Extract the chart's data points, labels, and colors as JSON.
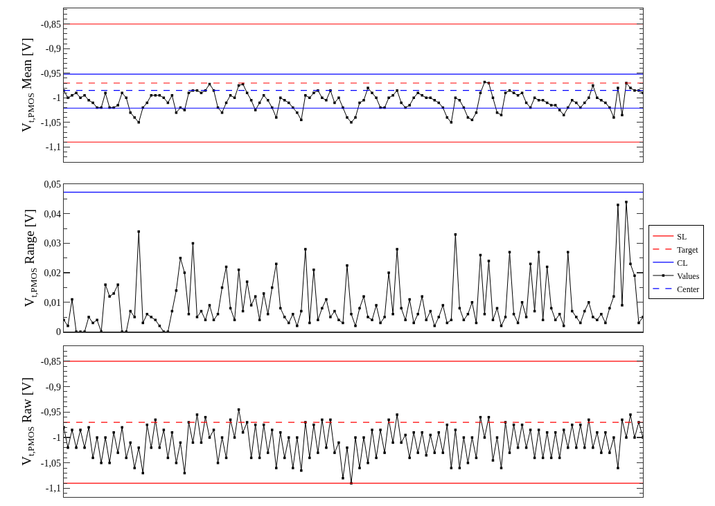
{
  "chart_data": [
    {
      "type": "line",
      "ylabel": "V$_{t,PMOS}$ Mean [V]",
      "tick_labels": "y",
      "marker": "square",
      "line_style": "solid",
      "categories": [
        null,
        null,
        null,
        null,
        null,
        null,
        null,
        null,
        null,
        null,
        null,
        null,
        null,
        null,
        null,
        null,
        null,
        null,
        null,
        null,
        null,
        null,
        null,
        null,
        null,
        null,
        null,
        null,
        null,
        null,
        null,
        null,
        null,
        null,
        null,
        null,
        null,
        null,
        null,
        null,
        null,
        null,
        null,
        null,
        null,
        null,
        null,
        null,
        null,
        null,
        null,
        null,
        null,
        null,
        null,
        null,
        null,
        null,
        null,
        null,
        null,
        null,
        null,
        null,
        null,
        null,
        null,
        null,
        null,
        null,
        null,
        null,
        null,
        null,
        null,
        null,
        null,
        null,
        null,
        null,
        null,
        null,
        null,
        null,
        null,
        null,
        null,
        null,
        null,
        null,
        null,
        null,
        null,
        null,
        null,
        null,
        null,
        null,
        null,
        null,
        null,
        null,
        null,
        null,
        null,
        null,
        null,
        null,
        null,
        null,
        null,
        null,
        null,
        null,
        null,
        null,
        null,
        null,
        null,
        null,
        null,
        null,
        null,
        null,
        null,
        null,
        null,
        null,
        null,
        null,
        null,
        null,
        null,
        null,
        null,
        null,
        null,
        null,
        null,
        null
      ],
      "series": [
        {
          "name": "Values",
          "color": "#000000",
          "values": [
            -0.985,
            -1.0,
            -0.995,
            -0.99,
            -1.0,
            -0.995,
            -1.005,
            -1.01,
            -1.02,
            -1.02,
            -0.99,
            -1.02,
            -1.02,
            -1.015,
            -0.99,
            -1.0,
            -1.03,
            -1.04,
            -1.05,
            -1.02,
            -1.01,
            -0.995,
            -0.995,
            -0.995,
            -1.0,
            -1.01,
            -0.995,
            -1.03,
            -1.02,
            -1.025,
            -0.99,
            -0.985,
            -0.985,
            -0.99,
            -0.985,
            -0.972,
            -0.985,
            -1.02,
            -1.03,
            -1.01,
            -0.995,
            -1.0,
            -0.975,
            -0.972,
            -0.99,
            -1.005,
            -1.025,
            -1.01,
            -0.995,
            -1.005,
            -1.02,
            -1.04,
            -1.0,
            -1.005,
            -1.01,
            -1.02,
            -1.03,
            -1.045,
            -0.995,
            -1.0,
            -0.99,
            -0.985,
            -1.0,
            -1.005,
            -0.985,
            -1.01,
            -1.0,
            -1.02,
            -1.04,
            -1.05,
            -1.04,
            -1.01,
            -1.005,
            -0.98,
            -0.99,
            -1.0,
            -1.02,
            -1.02,
            -1.0,
            -0.995,
            -0.985,
            -1.01,
            -1.02,
            -1.015,
            -1.0,
            -0.99,
            -0.995,
            -1.0,
            -1.0,
            -1.005,
            -1.01,
            -1.02,
            -1.04,
            -1.05,
            -1.0,
            -1.005,
            -1.02,
            -1.04,
            -1.045,
            -1.03,
            -0.99,
            -0.968,
            -0.97,
            -1.0,
            -1.03,
            -1.035,
            -0.99,
            -0.985,
            -0.99,
            -0.995,
            -0.99,
            -1.01,
            -1.02,
            -1.0,
            -1.005,
            -1.005,
            -1.01,
            -1.015,
            -1.015,
            -1.025,
            -1.035,
            -1.02,
            -1.005,
            -1.01,
            -1.02,
            -1.01,
            -1.0,
            -0.975,
            -1.0,
            -1.005,
            -1.01,
            -1.02,
            -1.04,
            -0.98,
            -1.035,
            -0.97,
            -0.98,
            -0.985,
            -0.985,
            -0.99
          ]
        }
      ],
      "ylim": [
        -1.13,
        -0.818
      ],
      "yticks": [
        {
          "value": -0.85,
          "label": "-0,85"
        },
        {
          "value": -0.9,
          "label": "-0,9"
        },
        {
          "value": -0.95,
          "label": "-0,95"
        },
        {
          "value": -1,
          "label": "-1"
        },
        {
          "value": -1.05,
          "label": "-1,05"
        },
        {
          "value": -1.1,
          "label": "-1,1"
        },
        {
          "value": -0.82,
          "label": null
        },
        {
          "value": -0.83,
          "label": null
        },
        {
          "value": -0.84,
          "label": null
        },
        {
          "value": -0.86,
          "label": null
        },
        {
          "value": -0.87,
          "label": null
        },
        {
          "value": -0.88,
          "label": null
        },
        {
          "value": -0.89,
          "label": null
        },
        {
          "value": -0.91,
          "label": null
        },
        {
          "value": -0.92,
          "label": null
        },
        {
          "value": -0.93,
          "label": null
        },
        {
          "value": -0.94,
          "label": null
        },
        {
          "value": -0.96,
          "label": null
        },
        {
          "value": -0.97,
          "label": null
        },
        {
          "value": -0.98,
          "label": null
        },
        {
          "value": -0.99,
          "label": null
        },
        {
          "value": -1.01,
          "label": null
        },
        {
          "value": -1.02,
          "label": null
        },
        {
          "value": -1.03,
          "label": null
        },
        {
          "value": -1.04,
          "label": null
        },
        {
          "value": -1.06,
          "label": null
        },
        {
          "value": -1.07,
          "label": null
        },
        {
          "value": -1.08,
          "label": null
        },
        {
          "value": -1.09,
          "label": null
        },
        {
          "value": -1.11,
          "label": null
        },
        {
          "value": -1.12,
          "label": null
        }
      ],
      "ref_lines": [
        {
          "axis": "y",
          "value": -0.85,
          "label": "SL",
          "color": "#ff0000",
          "line_style": "solid"
        },
        {
          "axis": "y",
          "value": -0.97,
          "label": "Target",
          "color": "#ff0000",
          "line_style": "dashed"
        },
        {
          "axis": "y",
          "value": -0.952,
          "label": "CL",
          "color": "#0000ff",
          "line_style": "solid"
        },
        {
          "axis": "y",
          "value": -1.021,
          "color": "#0000ff",
          "line_style": "solid"
        },
        {
          "axis": "y",
          "value": -1.09,
          "color": "#ff0000",
          "line_style": "solid"
        },
        {
          "axis": "y",
          "value": -0.985,
          "label": "Center",
          "color": "#0000ff",
          "line_style": "dashed"
        }
      ],
      "legend": "bottom right"
    },
    {
      "type": "line",
      "ylabel": "V$_{t,PMOS}$ Range [V]",
      "tick_labels": "y",
      "marker": "square",
      "line_style": "solid",
      "categories": [
        null,
        null,
        null,
        null,
        null,
        null,
        null,
        null,
        null,
        null,
        null,
        null,
        null,
        null,
        null,
        null,
        null,
        null,
        null,
        null,
        null,
        null,
        null,
        null,
        null,
        null,
        null,
        null,
        null,
        null,
        null,
        null,
        null,
        null,
        null,
        null,
        null,
        null,
        null,
        null,
        null,
        null,
        null,
        null,
        null,
        null,
        null,
        null,
        null,
        null,
        null,
        null,
        null,
        null,
        null,
        null,
        null,
        null,
        null,
        null,
        null,
        null,
        null,
        null,
        null,
        null,
        null,
        null,
        null,
        null,
        null,
        null,
        null,
        null,
        null,
        null,
        null,
        null,
        null,
        null,
        null,
        null,
        null,
        null,
        null,
        null,
        null,
        null,
        null,
        null,
        null,
        null,
        null,
        null,
        null,
        null,
        null,
        null,
        null,
        null,
        null,
        null,
        null,
        null,
        null,
        null,
        null,
        null,
        null,
        null,
        null,
        null,
        null,
        null,
        null,
        null,
        null,
        null,
        null,
        null,
        null,
        null,
        null,
        null,
        null,
        null,
        null,
        null,
        null,
        null,
        null,
        null,
        null,
        null,
        null,
        null,
        null,
        null,
        null,
        null
      ],
      "series": [
        {
          "name": "Values",
          "color": "#000000",
          "values": [
            0.004,
            0.002,
            0.011,
            0,
            0,
            0,
            0.005,
            0.003,
            0.004,
            0,
            0.016,
            0.012,
            0.013,
            0.016,
            0,
            0,
            0.007,
            0.005,
            0.034,
            0.003,
            0.006,
            0.005,
            0.004,
            0.002,
            0,
            0,
            0.007,
            0.014,
            0.025,
            0.02,
            0.006,
            0.03,
            0.005,
            0.007,
            0.004,
            0.009,
            0.004,
            0.006,
            0.015,
            0.022,
            0.008,
            0.004,
            0.021,
            0.007,
            0.017,
            0.009,
            0.012,
            0.004,
            0.013,
            0.006,
            0.015,
            0.023,
            0.008,
            0.005,
            0.003,
            0.006,
            0.002,
            0.007,
            0.028,
            0.003,
            0.021,
            0.004,
            0.008,
            0.011,
            0.005,
            0.007,
            0.004,
            0.003,
            0.0225,
            0.006,
            0.002,
            0.008,
            0.012,
            0.005,
            0.004,
            0.009,
            0.003,
            0.005,
            0.02,
            0.006,
            0.028,
            0.008,
            0.004,
            0.011,
            0.003,
            0.006,
            0.012,
            0.004,
            0.007,
            0.002,
            0.005,
            0.009,
            0.003,
            0.004,
            0.033,
            0.008,
            0.004,
            0.006,
            0.01,
            0.003,
            0.026,
            0.006,
            0.024,
            0.004,
            0.008,
            0.002,
            0.005,
            0.027,
            0.006,
            0.003,
            0.01,
            0.005,
            0.023,
            0.007,
            0.027,
            0.004,
            0.022,
            0.008,
            0.004,
            0.006,
            0.002,
            0.027,
            0.007,
            0.005,
            0.003,
            0.007,
            0.01,
            0.005,
            0.004,
            0.006,
            0.003,
            0.008,
            0.012,
            0.043,
            0.009,
            0.044,
            0.023,
            0.019,
            0.003,
            0.005
          ]
        }
      ],
      "ylim": [
        0,
        0.05
      ],
      "yticks": [
        {
          "value": 0,
          "label": "0"
        },
        {
          "value": 0.01,
          "label": "0,01"
        },
        {
          "value": 0.02,
          "label": "0,02"
        },
        {
          "value": 0.03,
          "label": "0,03"
        },
        {
          "value": 0.04,
          "label": "0,04"
        },
        {
          "value": 0.05,
          "label": "0,05"
        },
        {
          "value": 0.005,
          "label": null
        },
        {
          "value": 0.015,
          "label": null
        },
        {
          "value": 0.025,
          "label": null
        },
        {
          "value": 0.035,
          "label": null
        },
        {
          "value": 0.045,
          "label": null
        }
      ],
      "ref_lines": [
        {
          "axis": "y",
          "value": 0.0473,
          "color": "#0000ff",
          "line_style": "solid"
        }
      ]
    },
    {
      "type": "line",
      "ylabel": "V$_{t,PMOS}$ Raw [V]",
      "tick_labels": "y",
      "marker": "square",
      "line_style": "solid",
      "categories": [
        null,
        null,
        null,
        null,
        null,
        null,
        null,
        null,
        null,
        null,
        null,
        null,
        null,
        null,
        null,
        null,
        null,
        null,
        null,
        null,
        null,
        null,
        null,
        null,
        null,
        null,
        null,
        null,
        null,
        null,
        null,
        null,
        null,
        null,
        null,
        null,
        null,
        null,
        null,
        null,
        null,
        null,
        null,
        null,
        null,
        null,
        null,
        null,
        null,
        null,
        null,
        null,
        null,
        null,
        null,
        null,
        null,
        null,
        null,
        null,
        null,
        null,
        null,
        null,
        null,
        null,
        null,
        null,
        null,
        null,
        null,
        null,
        null,
        null,
        null,
        null,
        null,
        null,
        null,
        null,
        null,
        null,
        null,
        null,
        null,
        null,
        null,
        null,
        null,
        null,
        null,
        null,
        null,
        null,
        null,
        null,
        null,
        null,
        null,
        null,
        null,
        null,
        null,
        null,
        null,
        null,
        null,
        null,
        null,
        null,
        null,
        null,
        null,
        null,
        null,
        null,
        null,
        null,
        null,
        null,
        null,
        null,
        null,
        null,
        null,
        null,
        null,
        null,
        null,
        null,
        null,
        null,
        null,
        null,
        null,
        null,
        null,
        null,
        null,
        null
      ],
      "series": [
        {
          "name": "Values",
          "color": "#000000",
          "values": [
            -0.98,
            -1.02,
            -0.985,
            -1.02,
            -0.985,
            -1.02,
            -0.98,
            -1.04,
            -1.0,
            -1.05,
            -1.0,
            -1.05,
            -0.99,
            -1.03,
            -0.98,
            -1.04,
            -1.01,
            -1.06,
            -1.02,
            -1.07,
            -0.975,
            -1.02,
            -0.965,
            -1.02,
            -0.985,
            -1.04,
            -0.99,
            -1.05,
            -1.01,
            -1.07,
            -0.97,
            -1.01,
            -0.955,
            -1.01,
            -0.96,
            -1.0,
            -0.985,
            -1.05,
            -1.0,
            -1.04,
            -0.965,
            -1.0,
            -0.945,
            -0.99,
            -0.97,
            -1.04,
            -0.975,
            -1.04,
            -0.975,
            -1.03,
            -0.985,
            -1.06,
            -0.99,
            -1.04,
            -1.0,
            -1.06,
            -1.0,
            -1.065,
            -0.97,
            -1.04,
            -0.975,
            -1.03,
            -0.965,
            -1.02,
            -0.965,
            -1.03,
            -1.01,
            -1.08,
            -1.02,
            -1.09,
            -1.0,
            -1.06,
            -1.0,
            -1.05,
            -0.985,
            -1.04,
            -0.985,
            -1.03,
            -0.965,
            -1.01,
            -0.955,
            -1.01,
            -0.995,
            -1.04,
            -0.99,
            -1.03,
            -0.99,
            -1.035,
            -0.995,
            -1.03,
            -0.99,
            -1.03,
            -0.975,
            -1.06,
            -0.985,
            -1.06,
            -1.0,
            -1.05,
            -1.0,
            -1.04,
            -0.96,
            -1.0,
            -0.96,
            -1.045,
            -1.0,
            -1.06,
            -0.97,
            -1.03,
            -0.975,
            -1.02,
            -0.975,
            -1.02,
            -0.985,
            -1.04,
            -0.985,
            -1.04,
            -0.99,
            -1.04,
            -0.99,
            -1.04,
            -0.985,
            -1.02,
            -0.975,
            -1.02,
            -0.975,
            -1.02,
            -0.965,
            -1.02,
            -0.99,
            -1.03,
            -0.99,
            -1.03,
            -1.0,
            -1.06,
            -0.965,
            -1.0,
            -0.955,
            -1.0,
            -0.97,
            -1.0
          ]
        }
      ],
      "ylim": [
        -1.117,
        -0.82
      ],
      "yticks": [
        {
          "value": -0.85,
          "label": "-0,85"
        },
        {
          "value": -0.9,
          "label": "-0,9"
        },
        {
          "value": -0.95,
          "label": "-0,95"
        },
        {
          "value": -1,
          "label": "-1"
        },
        {
          "value": -1.05,
          "label": "-1,05"
        },
        {
          "value": -1.1,
          "label": "-1,1"
        },
        {
          "value": -0.83,
          "label": null
        },
        {
          "value": -0.84,
          "label": null
        },
        {
          "value": -0.86,
          "label": null
        },
        {
          "value": -0.87,
          "label": null
        },
        {
          "value": -0.88,
          "label": null
        },
        {
          "value": -0.89,
          "label": null
        },
        {
          "value": -0.91,
          "label": null
        },
        {
          "value": -0.92,
          "label": null
        },
        {
          "value": -0.93,
          "label": null
        },
        {
          "value": -0.94,
          "label": null
        },
        {
          "value": -0.96,
          "label": null
        },
        {
          "value": -0.97,
          "label": null
        },
        {
          "value": -0.98,
          "label": null
        },
        {
          "value": -0.99,
          "label": null
        },
        {
          "value": -1.01,
          "label": null
        },
        {
          "value": -1.02,
          "label": null
        },
        {
          "value": -1.03,
          "label": null
        },
        {
          "value": -1.04,
          "label": null
        },
        {
          "value": -1.06,
          "label": null
        },
        {
          "value": -1.07,
          "label": null
        },
        {
          "value": -1.08,
          "label": null
        },
        {
          "value": -1.09,
          "label": null
        },
        {
          "value": -1.11,
          "label": null
        }
      ],
      "ref_lines": [
        {
          "axis": "y",
          "value": -0.85,
          "color": "#ff0000",
          "line_style": "solid"
        },
        {
          "axis": "y",
          "value": -0.97,
          "color": "#ff0000",
          "line_style": "dashed"
        },
        {
          "axis": "y",
          "value": -1.09,
          "color": "#ff0000",
          "line_style": "solid"
        }
      ]
    }
  ]
}
